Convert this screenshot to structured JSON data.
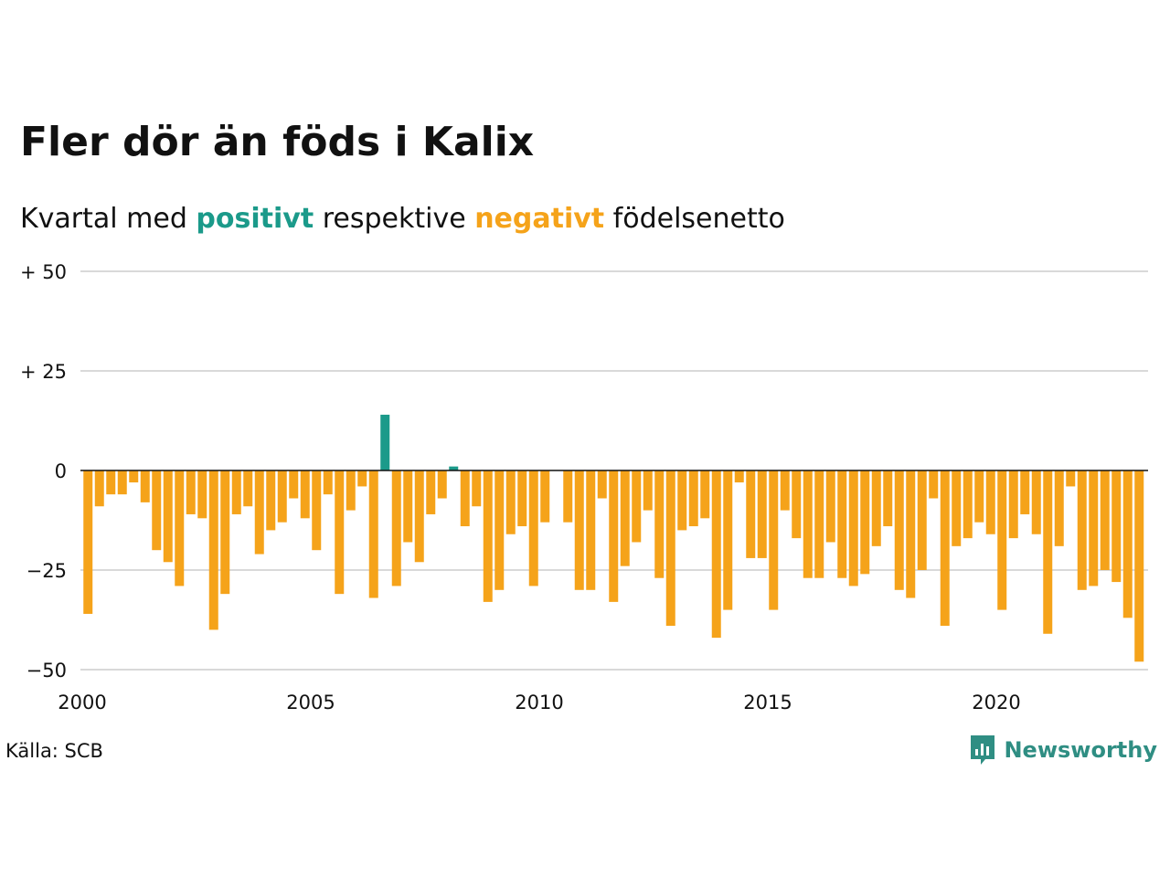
{
  "header": {
    "title": "Fler dör än föds i Kalix",
    "subtitle_prefix": "Kvartal med ",
    "subtitle_positive": "positivt",
    "subtitle_middle": " respektive ",
    "subtitle_negative": "negativt",
    "subtitle_suffix": " födelsenetto"
  },
  "footer": {
    "source": "Källa: SCB",
    "brand": "Newsworthy",
    "brand_icon": "bar-chart-icon"
  },
  "colors": {
    "positive": "#1b9a8a",
    "negative": "#f5a31a",
    "grid": "#d9d9d9",
    "zero_line": "#111111",
    "brand": "#2f8e83"
  },
  "chart_data": {
    "type": "bar",
    "title": "Fler dör än föds i Kalix",
    "subtitle": "Kvartal med positivt respektive negativt födelsenetto",
    "xlabel": "",
    "ylabel": "",
    "start_year": 2000,
    "periods_per_year": 4,
    "ylim": [
      -50,
      50
    ],
    "yticks": [
      50,
      25,
      0,
      -25,
      -50
    ],
    "ytick_labels": [
      "+ 50",
      "+ 25",
      "0",
      "−25",
      "−50"
    ],
    "xticks": [
      "2000",
      "2005",
      "2010",
      "2015",
      "2020"
    ],
    "grid": true,
    "values": [
      -36,
      -9,
      -6,
      -6,
      -3,
      -8,
      -20,
      -23,
      -29,
      -11,
      -12,
      -40,
      -31,
      -11,
      -9,
      -21,
      -15,
      -13,
      -7,
      -12,
      -20,
      -6,
      -31,
      -10,
      -4,
      -32,
      14,
      -29,
      -18,
      -23,
      -11,
      -7,
      1,
      -14,
      -9,
      -33,
      -30,
      -16,
      -14,
      -29,
      -13,
      0,
      -13,
      -30,
      -30,
      -7,
      -33,
      -24,
      -18,
      -10,
      -27,
      -39,
      -15,
      -14,
      -12,
      -42,
      -35,
      -3,
      -22,
      -22,
      -35,
      -10,
      -17,
      -27,
      -27,
      -18,
      -27,
      -29,
      -26,
      -19,
      -14,
      -30,
      -32,
      -25,
      -7,
      -39,
      -19,
      -17,
      -13,
      -16,
      -35,
      -17,
      -11,
      -16,
      -41,
      -19,
      -4,
      -30,
      -29,
      -25,
      -28,
      -37,
      -48
    ]
  }
}
